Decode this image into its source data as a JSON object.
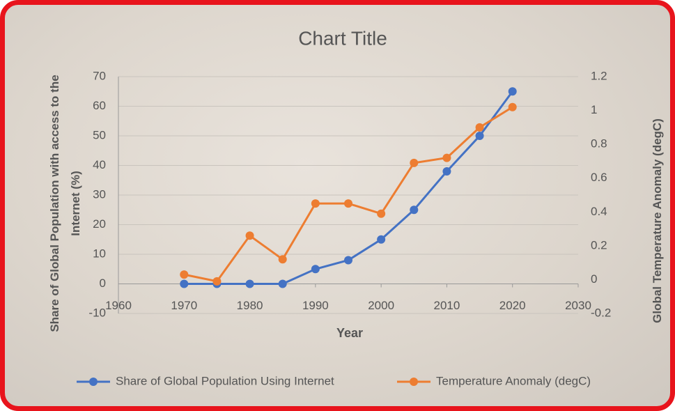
{
  "chart_data": {
    "type": "line",
    "title": "Chart Title",
    "x_label": "Year",
    "y_label": "Share of Global Population with access to the Internet (%)",
    "y2_label": "Global Temperature Anomaly (degC)",
    "x": [
      1970,
      1975,
      1980,
      1985,
      1990,
      1995,
      2000,
      2005,
      2010,
      2015,
      2020
    ],
    "series": [
      {
        "name": "Share of Global Population Using Internet",
        "color": "#4472c4",
        "values": [
          0,
          0,
          0,
          0,
          5,
          8,
          15,
          25,
          38,
          50,
          65
        ]
      },
      {
        "name": "Temperature Anomaly (degC)",
        "color": "#ed7d31",
        "axis": "y2",
        "values": [
          0.03,
          -0.01,
          0.26,
          0.12,
          0.45,
          0.45,
          0.39,
          0.69,
          0.72,
          0.9,
          1.02
        ]
      }
    ],
    "xlim": [
      1960,
      2030
    ],
    "xticks": [
      1960,
      1970,
      1980,
      1990,
      2000,
      2010,
      2020,
      2030
    ],
    "ylim": [
      -10,
      70
    ],
    "yticks": [
      -10,
      0,
      10,
      20,
      30,
      40,
      50,
      60,
      70
    ],
    "y2lim": [
      -0.2,
      1.2
    ],
    "y2ticks": [
      -0.2,
      0,
      0.2,
      0.4,
      0.6,
      0.8,
      1,
      1.2
    ],
    "grid": true,
    "legend": "bottom"
  }
}
